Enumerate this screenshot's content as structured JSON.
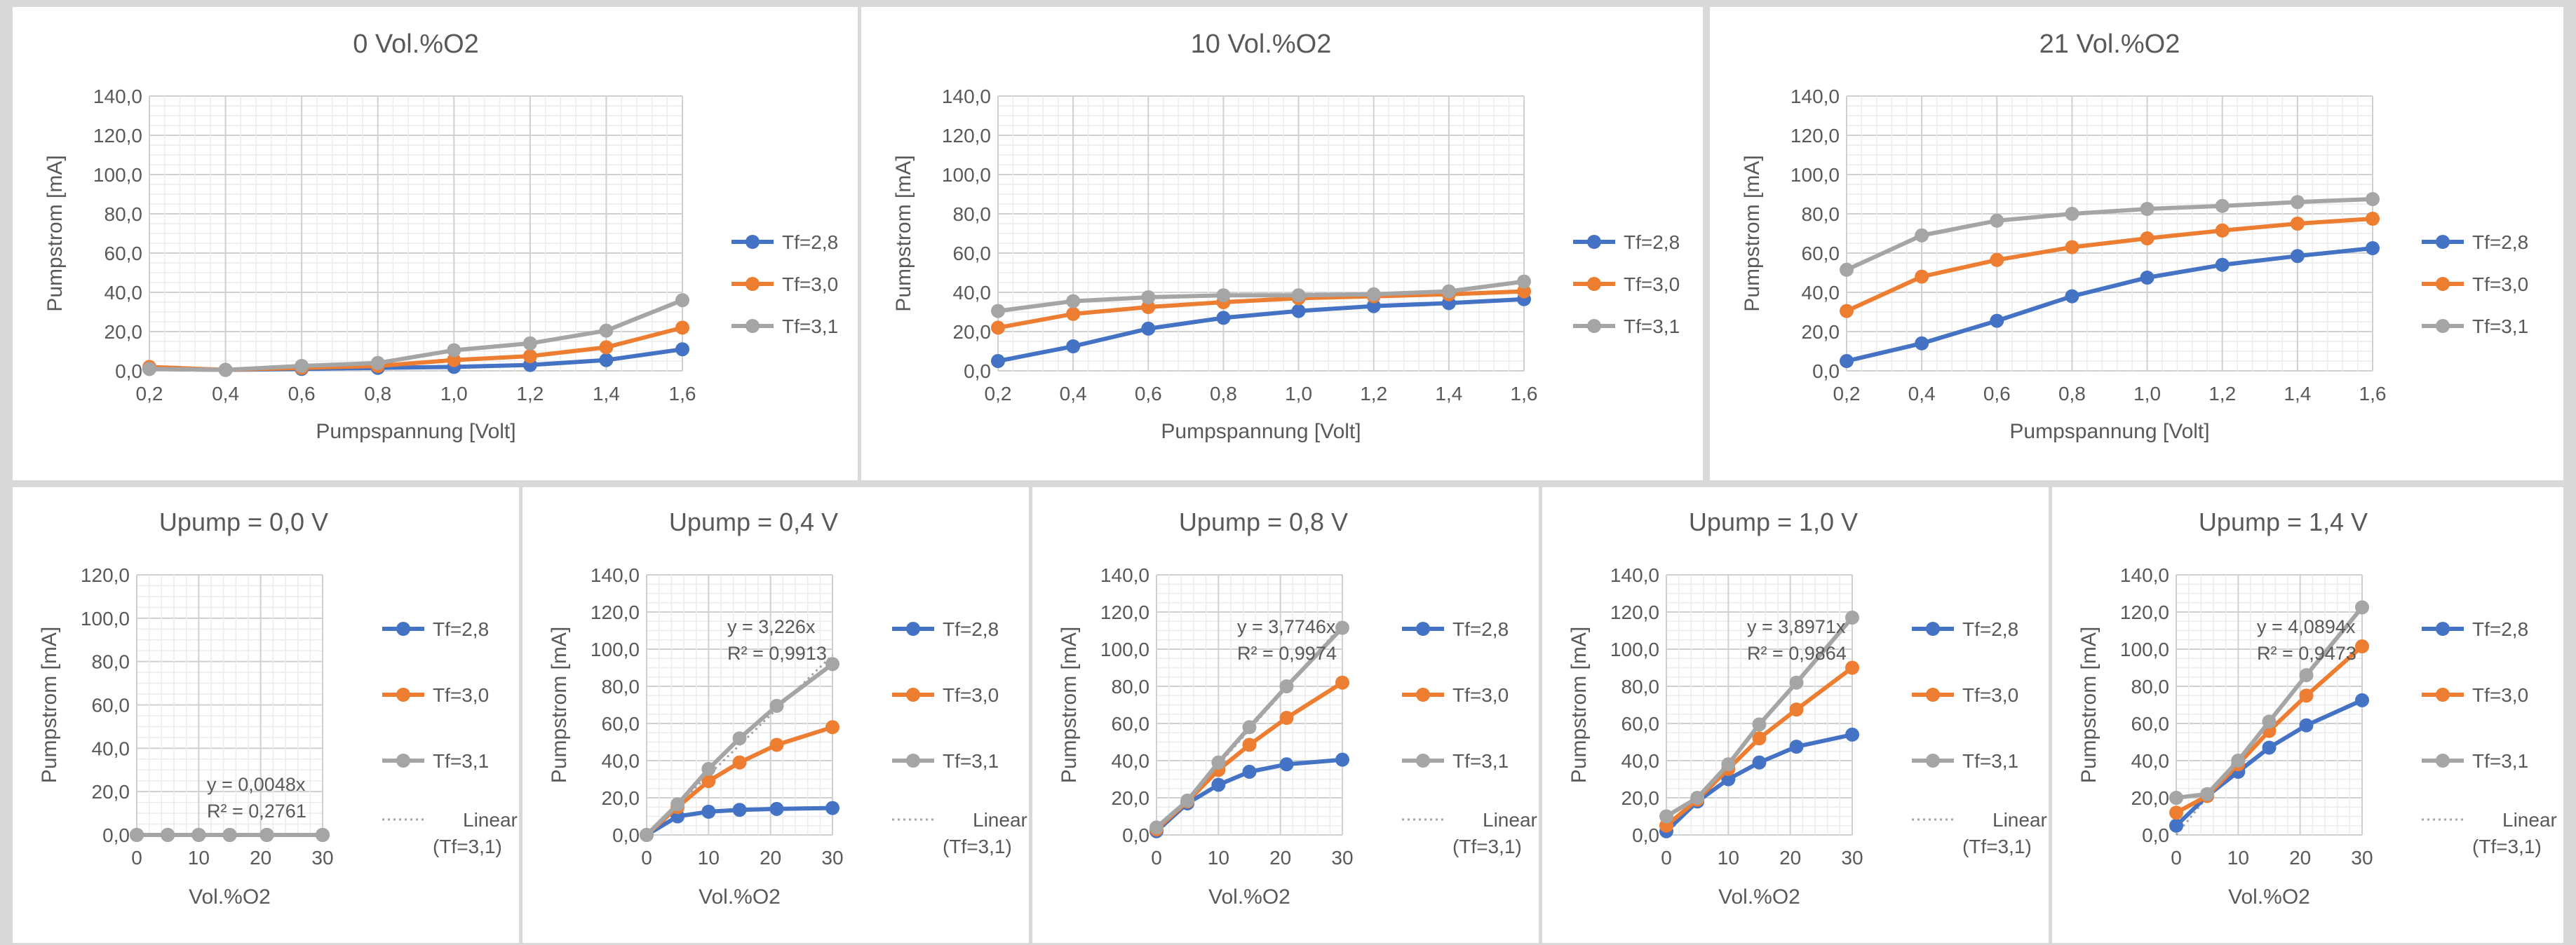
{
  "colors": {
    "Tf=2,8": "#4472c4",
    "Tf=3,0": "#ed7d31",
    "Tf=3,1": "#a5a5a5",
    "linear": "#a5a5a5",
    "grid": "#e3e3e3",
    "text": "#595959",
    "background": "#d9d9d9"
  },
  "chart_data": [
    {
      "type": "line",
      "title": "0 Vol.%O2",
      "xlabel": "Pumpspannung [Volt]",
      "ylabel": "Pumpstrom [mA]",
      "x": [
        0.2,
        0.4,
        0.6,
        0.8,
        1.0,
        1.2,
        1.4,
        1.6
      ],
      "x_ticks": [
        "0,2",
        "0,4",
        "0,6",
        "0,8",
        "1,0",
        "1,2",
        "1,4",
        "1,6"
      ],
      "ylim": [
        0,
        140
      ],
      "y_ticks": [
        "0,0",
        "20,0",
        "40,0",
        "60,0",
        "80,0",
        "100,0",
        "120,0",
        "140,0"
      ],
      "grid": true,
      "legend": "right",
      "series": [
        {
          "name": "Tf=2,8",
          "values": [
            1,
            0.5,
            1,
            1.5,
            2,
            3,
            5.5,
            11
          ]
        },
        {
          "name": "Tf=3,0",
          "values": [
            2,
            0.5,
            1.5,
            2.5,
            5.5,
            7.5,
            12,
            22
          ]
        },
        {
          "name": "Tf=3,1",
          "values": [
            1,
            0.5,
            2.5,
            4,
            10.5,
            14,
            20.5,
            36
          ]
        }
      ]
    },
    {
      "type": "line",
      "title": "10 Vol.%O2",
      "xlabel": "Pumpspannung [Volt]",
      "ylabel": "Pumpstrom [mA]",
      "x": [
        0.2,
        0.4,
        0.6,
        0.8,
        1.0,
        1.2,
        1.4,
        1.6
      ],
      "x_ticks": [
        "0,2",
        "0,4",
        "0,6",
        "0,8",
        "1,0",
        "1,2",
        "1,4",
        "1,6"
      ],
      "ylim": [
        0,
        140
      ],
      "y_ticks": [
        "0,0",
        "20,0",
        "40,0",
        "60,0",
        "80,0",
        "100,0",
        "120,0",
        "140,0"
      ],
      "grid": true,
      "legend": "right",
      "series": [
        {
          "name": "Tf=2,8",
          "values": [
            5,
            12.5,
            21.5,
            27,
            30.5,
            33,
            34.5,
            36.5
          ]
        },
        {
          "name": "Tf=3,0",
          "values": [
            22,
            29,
            32.5,
            35,
            37,
            38,
            39,
            40.5
          ]
        },
        {
          "name": "Tf=3,1",
          "values": [
            30.5,
            35.5,
            37.5,
            38.5,
            38.5,
            39,
            40.5,
            45.5
          ]
        }
      ]
    },
    {
      "type": "line",
      "title": "21 Vol.%O2",
      "xlabel": "Pumpspannung [Volt]",
      "ylabel": "Pumpstrom [mA]",
      "x": [
        0.2,
        0.4,
        0.6,
        0.8,
        1.0,
        1.2,
        1.4,
        1.6
      ],
      "x_ticks": [
        "0,2",
        "0,4",
        "0,6",
        "0,8",
        "1,0",
        "1,2",
        "1,4",
        "1,6"
      ],
      "ylim": [
        0,
        140
      ],
      "y_ticks": [
        "0,0",
        "20,0",
        "40,0",
        "60,0",
        "80,0",
        "100,0",
        "120,0",
        "140,0"
      ],
      "grid": true,
      "legend": "right",
      "series": [
        {
          "name": "Tf=2,8",
          "values": [
            5,
            14,
            25.5,
            38,
            47.5,
            54,
            58.5,
            62.5
          ]
        },
        {
          "name": "Tf=3,0",
          "values": [
            30.5,
            48,
            56.5,
            63,
            67.5,
            71.5,
            75,
            77.5
          ]
        },
        {
          "name": "Tf=3,1",
          "values": [
            51.5,
            69,
            76.5,
            80,
            82.5,
            84,
            86,
            87.5
          ]
        }
      ]
    },
    {
      "type": "scatter",
      "title": "Upump = 0,0 V",
      "xlabel": "Vol.%O2",
      "ylabel": "Pumpstrom [mA]",
      "x": [
        0,
        5,
        10,
        15,
        21,
        30
      ],
      "x_ticks": [
        "0",
        "10",
        "20",
        "30"
      ],
      "xlim": [
        0,
        30
      ],
      "ylim": [
        0,
        120
      ],
      "y_ticks": [
        "0,0",
        "20,0",
        "40,0",
        "60,0",
        "80,0",
        "100,0",
        "120,0"
      ],
      "grid": true,
      "legend": "right",
      "trendline": {
        "equation": "y = 0,0048x",
        "r2": "R² = 0,2761",
        "slope": 0.0048
      },
      "legend_linear": "Linear (Tf=3,1)",
      "series": [
        {
          "name": "Tf=2,8",
          "values": [
            0,
            0,
            0,
            0,
            0,
            0
          ]
        },
        {
          "name": "Tf=3,0",
          "values": [
            0,
            0,
            0,
            0,
            0,
            0
          ]
        },
        {
          "name": "Tf=3,1",
          "values": [
            0,
            0,
            0,
            0,
            0,
            0
          ]
        }
      ]
    },
    {
      "type": "scatter",
      "title": "Upump = 0,4 V",
      "xlabel": "Vol.%O2",
      "ylabel": "Pumpstrom [mA]",
      "x": [
        0,
        5,
        10,
        15,
        21,
        30
      ],
      "x_ticks": [
        "0",
        "10",
        "20",
        "30"
      ],
      "xlim": [
        0,
        30
      ],
      "ylim": [
        0,
        140
      ],
      "y_ticks": [
        "0,0",
        "20,0",
        "40,0",
        "60,0",
        "80,0",
        "100,0",
        "120,0",
        "140,0"
      ],
      "grid": true,
      "legend": "right",
      "trendline": {
        "equation": "y = 3,226x",
        "r2": "R² = 0,9913",
        "slope": 3.226
      },
      "legend_linear": "Linear (Tf=3,1)",
      "series": [
        {
          "name": "Tf=2,8",
          "values": [
            0,
            10,
            12.5,
            13.5,
            14,
            14.5
          ]
        },
        {
          "name": "Tf=3,0",
          "values": [
            0,
            15,
            29,
            39,
            48.5,
            58
          ]
        },
        {
          "name": "Tf=3,1",
          "values": [
            0,
            16.5,
            35.5,
            52,
            69.5,
            92
          ]
        }
      ]
    },
    {
      "type": "scatter",
      "title": "Upump = 0,8 V",
      "xlabel": "Vol.%O2",
      "ylabel": "Pumpstrom [mA]",
      "x": [
        0,
        5,
        10,
        15,
        21,
        30
      ],
      "x_ticks": [
        "0",
        "10",
        "20",
        "30"
      ],
      "xlim": [
        0,
        30
      ],
      "ylim": [
        0,
        140
      ],
      "y_ticks": [
        "0,0",
        "20,0",
        "40,0",
        "60,0",
        "80,0",
        "100,0",
        "120,0",
        "140,0"
      ],
      "grid": true,
      "legend": "right",
      "trendline": {
        "equation": "y = 3,7746x",
        "r2": "R² = 0,9974",
        "slope": 3.7746
      },
      "legend_linear": "Linear (Tf=3,1)",
      "series": [
        {
          "name": "Tf=2,8",
          "values": [
            2,
            17,
            27,
            34,
            38,
            40.5
          ]
        },
        {
          "name": "Tf=3,0",
          "values": [
            3,
            18,
            35,
            48.5,
            63,
            82
          ]
        },
        {
          "name": "Tf=3,1",
          "values": [
            4,
            18.5,
            39,
            58,
            80,
            111.5
          ]
        }
      ]
    },
    {
      "type": "scatter",
      "title": "Upump = 1,0 V",
      "xlabel": "Vol.%O2",
      "ylabel": "Pumpstrom [mA]",
      "x": [
        0,
        5,
        10,
        15,
        21,
        30
      ],
      "x_ticks": [
        "0",
        "10",
        "20",
        "30"
      ],
      "xlim": [
        0,
        30
      ],
      "ylim": [
        0,
        140
      ],
      "y_ticks": [
        "0,0",
        "20,0",
        "40,0",
        "60,0",
        "80,0",
        "100,0",
        "120,0",
        "140,0"
      ],
      "grid": true,
      "legend": "right",
      "trendline": {
        "equation": "y = 3,8971x",
        "r2": "R² = 0,9864",
        "slope": 3.8971
      },
      "legend_linear": "Linear (Tf=3,1)",
      "series": [
        {
          "name": "Tf=2,8",
          "values": [
            2,
            18,
            30,
            39,
            47.5,
            54
          ]
        },
        {
          "name": "Tf=3,0",
          "values": [
            5,
            19,
            35.5,
            52,
            67.5,
            90
          ]
        },
        {
          "name": "Tf=3,1",
          "values": [
            10,
            20,
            38,
            59.5,
            82,
            117
          ]
        }
      ]
    },
    {
      "type": "scatter",
      "title": "Upump = 1,4 V",
      "xlabel": "Vol.%O2",
      "ylabel": "Pumpstrom [mA]",
      "x": [
        0,
        5,
        10,
        15,
        21,
        30
      ],
      "x_ticks": [
        "0",
        "10",
        "20",
        "30"
      ],
      "xlim": [
        0,
        30
      ],
      "ylim": [
        0,
        140
      ],
      "y_ticks": [
        "0,0",
        "20,0",
        "40,0",
        "60,0",
        "80,0",
        "100,0",
        "120,0",
        "140,0"
      ],
      "grid": true,
      "legend": "right",
      "trendline": {
        "equation": "y = 4,0894x",
        "r2": "R² = 0,9473",
        "slope": 4.0894
      },
      "legend_linear": "Linear (Tf=3,1)",
      "series": [
        {
          "name": "Tf=2,8",
          "values": [
            5,
            21,
            34,
            47,
            59,
            72.5
          ]
        },
        {
          "name": "Tf=3,0",
          "values": [
            12,
            21,
            38,
            56,
            75,
            101.5
          ]
        },
        {
          "name": "Tf=3,1",
          "values": [
            20,
            22,
            40,
            61,
            86,
            122.5
          ]
        }
      ]
    }
  ]
}
